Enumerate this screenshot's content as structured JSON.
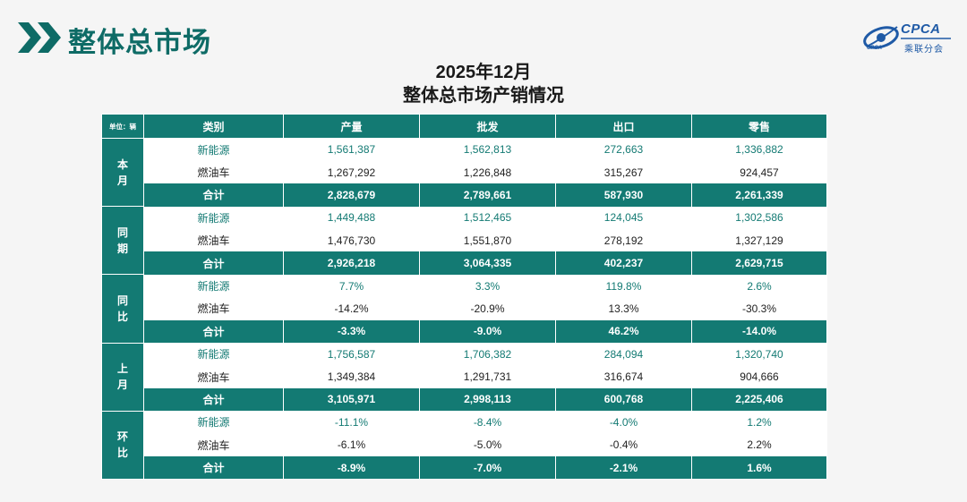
{
  "header": {
    "title": "整体总市场",
    "logo_text": "CPCA",
    "logo_cn": "乘联分会",
    "logo_sub": "CPCA"
  },
  "subtitle": {
    "line1": "2025年12月",
    "line2": "整体总市场产销情况"
  },
  "table": {
    "unit_label": "单位：辆",
    "columns": [
      "类别",
      "产量",
      "批发",
      "出口",
      "零售"
    ],
    "groups": [
      {
        "label": "本月",
        "rows": [
          {
            "type": "nev",
            "cells": [
              "新能源",
              "1,561,387",
              "1,562,813",
              "272,663",
              "1,336,882"
            ]
          },
          {
            "type": "ice",
            "cells": [
              "燃油车",
              "1,267,292",
              "1,226,848",
              "315,267",
              "924,457"
            ]
          },
          {
            "type": "total",
            "cells": [
              "合计",
              "2,828,679",
              "2,789,661",
              "587,930",
              "2,261,339"
            ]
          }
        ]
      },
      {
        "label": "同期",
        "rows": [
          {
            "type": "nev",
            "cells": [
              "新能源",
              "1,449,488",
              "1,512,465",
              "124,045",
              "1,302,586"
            ]
          },
          {
            "type": "ice",
            "cells": [
              "燃油车",
              "1,476,730",
              "1,551,870",
              "278,192",
              "1,327,129"
            ]
          },
          {
            "type": "total",
            "cells": [
              "合计",
              "2,926,218",
              "3,064,335",
              "402,237",
              "2,629,715"
            ]
          }
        ]
      },
      {
        "label": "同比",
        "rows": [
          {
            "type": "nev",
            "cells": [
              "新能源",
              "7.7%",
              "3.3%",
              "119.8%",
              "2.6%"
            ]
          },
          {
            "type": "ice",
            "cells": [
              "燃油车",
              "-14.2%",
              "-20.9%",
              "13.3%",
              "-30.3%"
            ]
          },
          {
            "type": "total",
            "cells": [
              "合计",
              "-3.3%",
              "-9.0%",
              "46.2%",
              "-14.0%"
            ]
          }
        ]
      },
      {
        "label": "上月",
        "rows": [
          {
            "type": "nev",
            "cells": [
              "新能源",
              "1,756,587",
              "1,706,382",
              "284,094",
              "1,320,740"
            ]
          },
          {
            "type": "ice",
            "cells": [
              "燃油车",
              "1,349,384",
              "1,291,731",
              "316,674",
              "904,666"
            ]
          },
          {
            "type": "total",
            "cells": [
              "合计",
              "3,105,971",
              "2,998,113",
              "600,768",
              "2,225,406"
            ]
          }
        ]
      },
      {
        "label": "环比",
        "rows": [
          {
            "type": "nev",
            "cells": [
              "新能源",
              "-11.1%",
              "-8.4%",
              "-4.0%",
              "1.2%"
            ]
          },
          {
            "type": "ice",
            "cells": [
              "燃油车",
              "-6.1%",
              "-5.0%",
              "-0.4%",
              "2.2%"
            ]
          },
          {
            "type": "total",
            "cells": [
              "合计",
              "-8.9%",
              "-7.0%",
              "-2.1%",
              "1.6%"
            ]
          }
        ]
      }
    ]
  },
  "colors": {
    "accent": "#137a73",
    "title": "#0e6b66",
    "logo": "#1f5aa6",
    "background": "#f5f5f5"
  },
  "icons": [
    "double-chevron-icon",
    "cpca-logo-icon"
  ]
}
